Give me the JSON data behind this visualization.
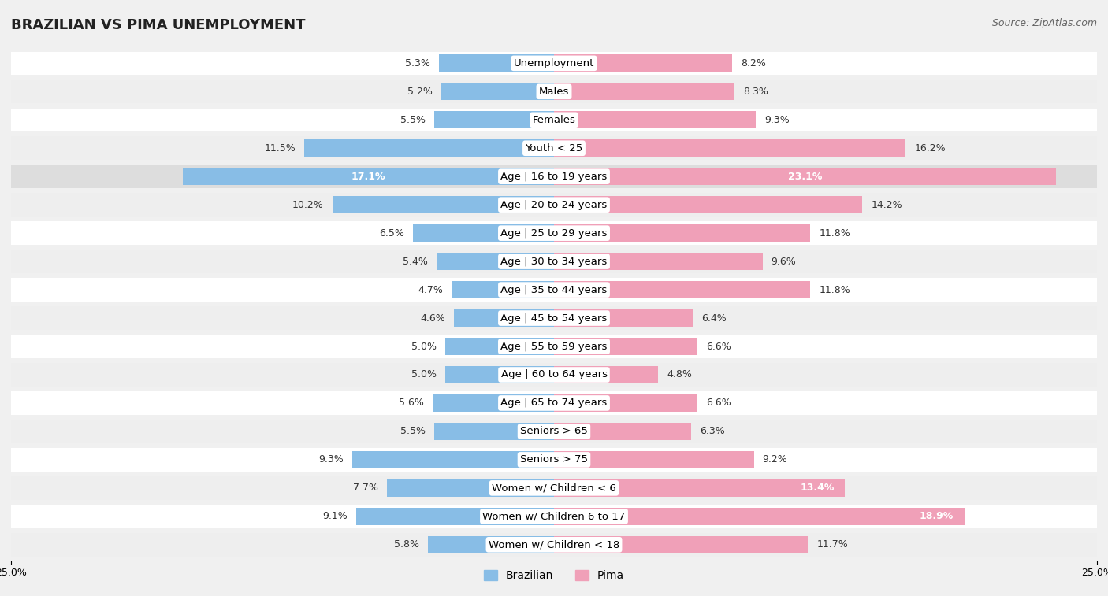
{
  "title": "BRAZILIAN VS PIMA UNEMPLOYMENT",
  "source": "Source: ZipAtlas.com",
  "categories": [
    "Unemployment",
    "Males",
    "Females",
    "Youth < 25",
    "Age | 16 to 19 years",
    "Age | 20 to 24 years",
    "Age | 25 to 29 years",
    "Age | 30 to 34 years",
    "Age | 35 to 44 years",
    "Age | 45 to 54 years",
    "Age | 55 to 59 years",
    "Age | 60 to 64 years",
    "Age | 65 to 74 years",
    "Seniors > 65",
    "Seniors > 75",
    "Women w/ Children < 6",
    "Women w/ Children 6 to 17",
    "Women w/ Children < 18"
  ],
  "brazilian": [
    5.3,
    5.2,
    5.5,
    11.5,
    17.1,
    10.2,
    6.5,
    5.4,
    4.7,
    4.6,
    5.0,
    5.0,
    5.6,
    5.5,
    9.3,
    7.7,
    9.1,
    5.8
  ],
  "pima": [
    8.2,
    8.3,
    9.3,
    16.2,
    23.1,
    14.2,
    11.8,
    9.6,
    11.8,
    6.4,
    6.6,
    4.8,
    6.6,
    6.3,
    9.2,
    13.4,
    18.9,
    11.7
  ],
  "max_val": 25.0,
  "brazilian_color": "#88bde6",
  "pima_color": "#f0a0b8",
  "row_colors": [
    "#ffffff",
    "#eeeeee"
  ],
  "highlight_row_idx": 4,
  "highlight_row_color": "#dddddd",
  "highlight_val_color": "#ffffff",
  "normal_val_color": "#333333",
  "label_bg_color": "#ffffff",
  "label_text_color": "#333333",
  "bg_color": "#f0f0f0",
  "title_fontsize": 13,
  "source_fontsize": 9,
  "label_fontsize": 9.5,
  "value_fontsize": 9,
  "legend_fontsize": 10,
  "axis_tick_fontsize": 9,
  "white_val_rows": [
    4,
    15,
    16
  ],
  "inside_val_color": "#ffffff"
}
